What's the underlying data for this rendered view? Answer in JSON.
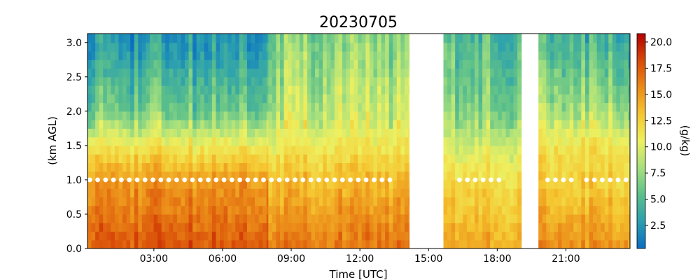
{
  "chart_data": {
    "type": "heatmap",
    "title": "20230705",
    "xlabel": "Time [UTC]",
    "ylabel": "(km AGL)",
    "colorbar_label": "(g/kg)",
    "x_range_hours": [
      0.1,
      23.8
    ],
    "ylim": [
      0.0,
      3.13
    ],
    "x_ticks": [
      {
        "value": 3,
        "label": "03:00"
      },
      {
        "value": 6,
        "label": "06:00"
      },
      {
        "value": 9,
        "label": "09:00"
      },
      {
        "value": 12,
        "label": "12:00"
      },
      {
        "value": 15,
        "label": "15:00"
      },
      {
        "value": 18,
        "label": "18:00"
      },
      {
        "value": 21,
        "label": "21:00"
      }
    ],
    "y_ticks": [
      {
        "value": 0.0,
        "label": "0.0"
      },
      {
        "value": 0.5,
        "label": "0.5"
      },
      {
        "value": 1.0,
        "label": "1.0"
      },
      {
        "value": 1.5,
        "label": "1.5"
      },
      {
        "value": 2.0,
        "label": "2.0"
      },
      {
        "value": 2.5,
        "label": "2.5"
      },
      {
        "value": 3.0,
        "label": "3.0"
      }
    ],
    "colorbar": {
      "range": [
        0.3,
        20.8
      ],
      "ticks": [
        {
          "value": 2.5,
          "label": "2.5"
        },
        {
          "value": 5.0,
          "label": "5.0"
        },
        {
          "value": 7.5,
          "label": "7.5"
        },
        {
          "value": 10.0,
          "label": "10.0"
        },
        {
          "value": 12.5,
          "label": "12.5"
        },
        {
          "value": 15.0,
          "label": "15.0"
        },
        {
          "value": 17.5,
          "label": "17.5"
        },
        {
          "value": 20.0,
          "label": "20.0"
        }
      ],
      "colors": [
        "#0a6dc2",
        "#2a9fb0",
        "#5cc08a",
        "#a6e07e",
        "#eef060",
        "#f5c630",
        "#eb8a18",
        "#d84a08",
        "#b40000"
      ]
    },
    "data_gaps_hours": [
      [
        14.15,
        15.65
      ],
      [
        19.05,
        19.8
      ]
    ],
    "marker_height_km": 1.0,
    "marker_color": "#ffffff",
    "marker_segments": [
      {
        "from_hour": 0.2,
        "to_hour": 13.35,
        "step_hours": 0.345
      },
      {
        "from_hour": 16.35,
        "to_hour": 18.4,
        "step_hours": 0.345
      },
      {
        "from_hour": 20.2,
        "to_hour": 21.3,
        "step_hours": 0.345
      },
      {
        "from_hour": 21.9,
        "to_hour": 23.8,
        "step_hours": 0.345
      }
    ],
    "profiles_note": "Water vapor mixing ratio profiles: ~16-19 g/kg near surface, decreasing with height; before ~08:00 UTC upper levels 1-5 g/kg, after ~08:00 UTC upper levels 5-8 g/kg.",
    "profile_segments": [
      {
        "from_hour": 0.1,
        "to_hour": 8.0,
        "surface_gkg": 17.8,
        "mid_1km_gkg": 15.0,
        "level_1_5km_gkg": 11.0,
        "level_2km_gkg": 6.0,
        "level_3km_gkg": 2.5
      },
      {
        "from_hour": 8.0,
        "to_hour": 14.15,
        "surface_gkg": 16.5,
        "mid_1km_gkg": 13.5,
        "level_1_5km_gkg": 11.0,
        "level_2km_gkg": 9.0,
        "level_3km_gkg": 7.0
      },
      {
        "from_hour": 15.65,
        "to_hour": 19.05,
        "surface_gkg": 14.5,
        "mid_1km_gkg": 12.0,
        "level_1_5km_gkg": 9.5,
        "level_2km_gkg": 7.0,
        "level_3km_gkg": 5.0
      },
      {
        "from_hour": 19.8,
        "to_hour": 23.8,
        "surface_gkg": 15.5,
        "mid_1km_gkg": 12.5,
        "level_1_5km_gkg": 11.5,
        "level_2km_gkg": 8.0,
        "level_3km_gkg": 4.5
      }
    ]
  }
}
